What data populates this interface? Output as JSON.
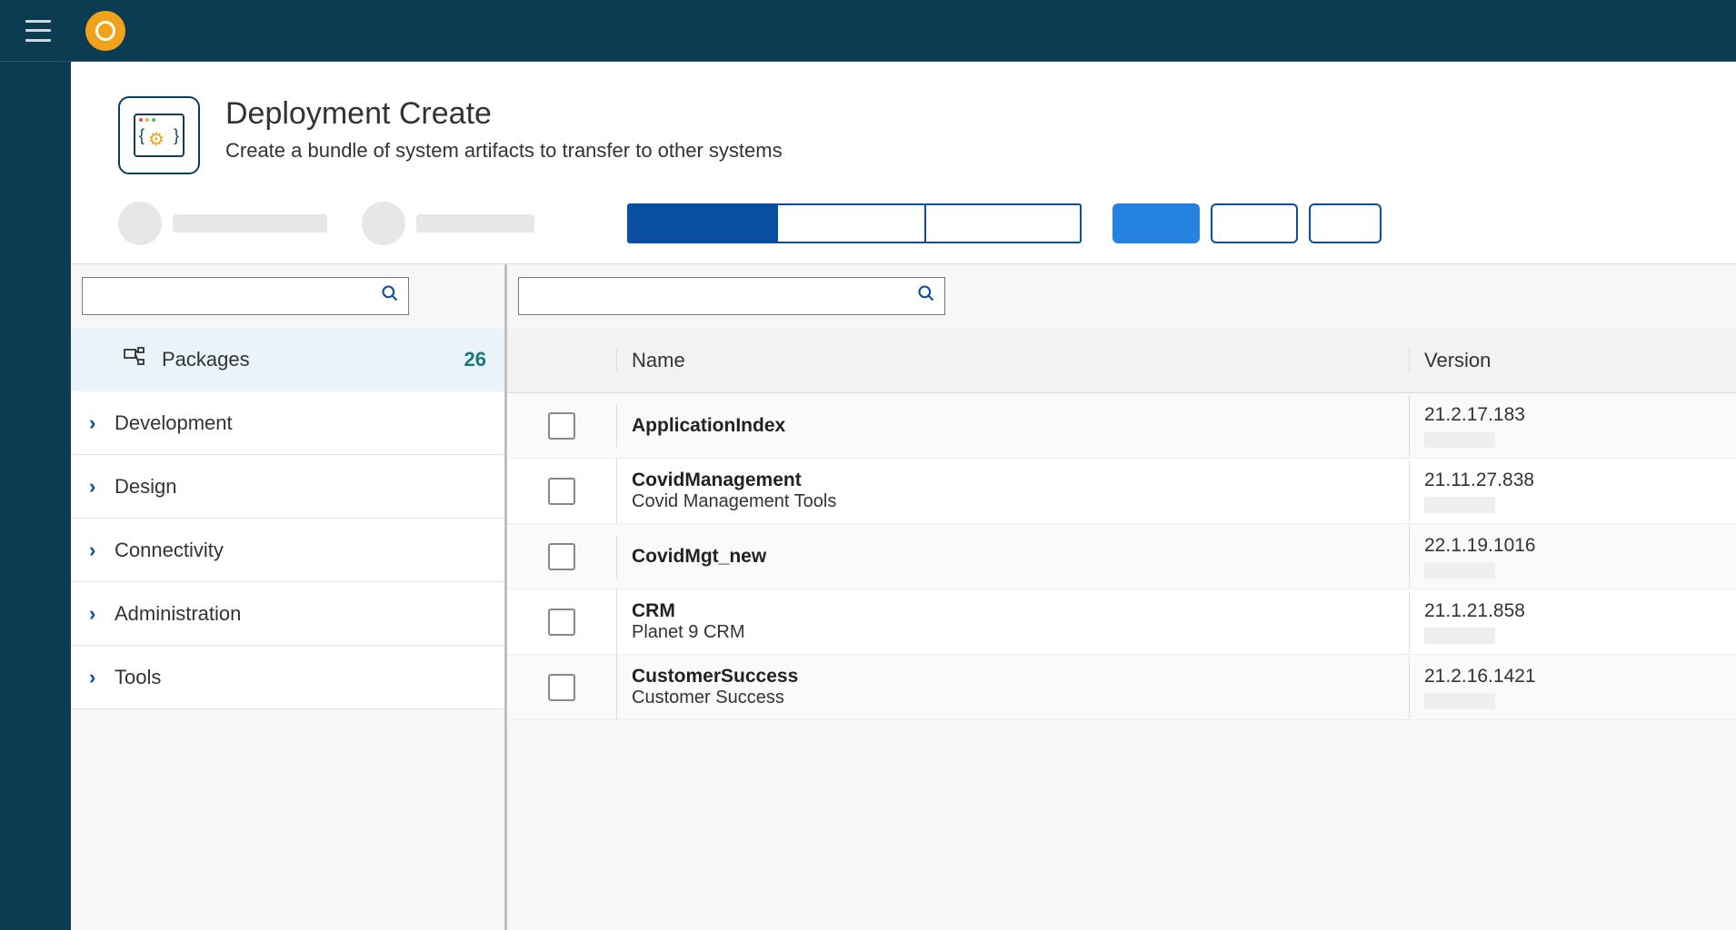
{
  "colors": {
    "brand_dark": "#0b3c52",
    "accent_blue": "#0a4ea0",
    "accent_lightblue": "#2682e0",
    "accent_orange": "#f0a31a",
    "row_highlight": "#e9f3f9",
    "count_teal": "#167a7a"
  },
  "header": {
    "title": "Deployment Create",
    "subtitle": "Create a bundle of system artifacts to transfer to other systems"
  },
  "left": {
    "packages_label": "Packages",
    "packages_count": "26",
    "tree": [
      {
        "label": "Development"
      },
      {
        "label": "Design"
      },
      {
        "label": "Connectivity"
      },
      {
        "label": "Administration"
      },
      {
        "label": "Tools"
      }
    ]
  },
  "table": {
    "columns": {
      "name": "Name",
      "version": "Version"
    },
    "rows": [
      {
        "name": "ApplicationIndex",
        "desc": "",
        "version": "21.2.17.183"
      },
      {
        "name": "CovidManagement",
        "desc": "Covid Management Tools",
        "version": "21.11.27.838"
      },
      {
        "name": "CovidMgt_new",
        "desc": "",
        "version": "22.1.19.1016"
      },
      {
        "name": "CRM",
        "desc": "Planet 9 CRM",
        "version": "21.1.21.858"
      },
      {
        "name": "CustomerSuccess",
        "desc": "Customer Success",
        "version": "21.2.16.1421"
      }
    ]
  }
}
